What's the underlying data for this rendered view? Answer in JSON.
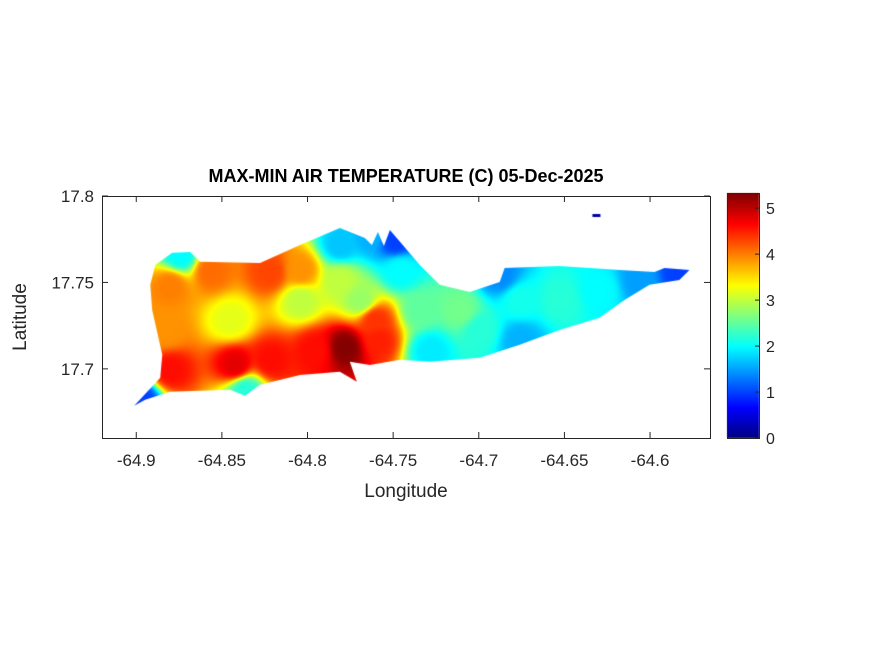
{
  "chart_data": {
    "type": "heatmap",
    "title": "MAX-MIN AIR TEMPERATURE (C) 05-Dec-2025",
    "xlabel": "Longitude",
    "ylabel": "Latitude",
    "xlim": [
      -64.92,
      -64.565
    ],
    "ylim": [
      17.66,
      17.8
    ],
    "xticks": [
      -64.9,
      -64.85,
      -64.8,
      -64.75,
      -64.7,
      -64.65,
      -64.6
    ],
    "xtick_labels": [
      "-64.9",
      "-64.85",
      "-64.8",
      "-64.75",
      "-64.7",
      "-64.65",
      "-64.6"
    ],
    "yticks": [
      17.7,
      17.75,
      17.8
    ],
    "ytick_labels": [
      "17.7",
      "17.75",
      "17.8"
    ],
    "colormap": "jet",
    "clim": [
      0,
      5.33
    ],
    "colorbar_ticks": [
      0,
      1,
      2,
      3,
      4,
      5
    ],
    "colorbar_tick_labels": [
      "0",
      "1",
      "2",
      "3",
      "4",
      "5"
    ],
    "grid": false,
    "land_outline": [
      [
        -64.9012,
        17.6786
      ],
      [
        -64.886,
        17.6948
      ],
      [
        -64.8848,
        17.7081
      ],
      [
        -64.8907,
        17.7341
      ],
      [
        -64.8918,
        17.7486
      ],
      [
        -64.8889,
        17.7601
      ],
      [
        -64.879,
        17.7671
      ],
      [
        -64.8685,
        17.7676
      ],
      [
        -64.8627,
        17.7619
      ],
      [
        -64.8277,
        17.7613
      ],
      [
        -64.8044,
        17.7717
      ],
      [
        -64.7811,
        17.7815
      ],
      [
        -64.7665,
        17.7757
      ],
      [
        -64.7624,
        17.7717
      ],
      [
        -64.7589,
        17.7792
      ],
      [
        -64.7554,
        17.7711
      ],
      [
        -64.7519,
        17.7803
      ],
      [
        -64.7344,
        17.7601
      ],
      [
        -64.7228,
        17.7486
      ],
      [
        -64.7053,
        17.7445
      ],
      [
        -64.6878,
        17.7503
      ],
      [
        -64.6849,
        17.7584
      ],
      [
        -64.6528,
        17.7595
      ],
      [
        -64.6178,
        17.7572
      ],
      [
        -64.5974,
        17.7561
      ],
      [
        -64.5916,
        17.7584
      ],
      [
        -64.577,
        17.7572
      ],
      [
        -64.5829,
        17.7514
      ],
      [
        -64.6003,
        17.7486
      ],
      [
        -64.6149,
        17.7399
      ],
      [
        -64.6295,
        17.7295
      ],
      [
        -64.6528,
        17.7225
      ],
      [
        -64.6761,
        17.7139
      ],
      [
        -64.6994,
        17.7064
      ],
      [
        -64.7286,
        17.7041
      ],
      [
        -64.746,
        17.7052
      ],
      [
        -64.7636,
        17.7023
      ],
      [
        -64.7753,
        17.7041
      ],
      [
        -64.7712,
        17.6925
      ],
      [
        -64.7811,
        17.6983
      ],
      [
        -64.8044,
        17.6965
      ],
      [
        -64.8277,
        17.6908
      ],
      [
        -64.8365,
        17.6844
      ],
      [
        -64.8452,
        17.6879
      ],
      [
        -64.8802,
        17.6867
      ],
      [
        -64.8948,
        17.6821
      ]
    ],
    "islet": {
      "lon": -64.6313,
      "lat": 17.789,
      "value": 0.2
    },
    "points": [
      [
        -64.8802,
        17.6994,
        4.6
      ],
      [
        -64.8423,
        17.7023,
        4.8
      ],
      [
        -64.8219,
        17.7052,
        4.6
      ],
      [
        -64.7956,
        17.711,
        4.6
      ],
      [
        -64.7782,
        17.7127,
        5.3
      ],
      [
        -64.7589,
        17.7168,
        4.5
      ],
      [
        -64.7607,
        17.7283,
        4.4
      ],
      [
        -64.8569,
        17.7572,
        4.1
      ],
      [
        -64.8219,
        17.7561,
        4.3
      ],
      [
        -64.8044,
        17.7572,
        3.9
      ],
      [
        -64.8802,
        17.7486,
        4.0
      ],
      [
        -64.8831,
        17.7225,
        3.9
      ],
      [
        -64.8452,
        17.7283,
        3.2
      ],
      [
        -64.8044,
        17.7399,
        3.0
      ],
      [
        -64.7811,
        17.7514,
        3.0
      ],
      [
        -64.7694,
        17.7399,
        2.8
      ],
      [
        -64.7461,
        17.7572,
        2.0
      ],
      [
        -64.7811,
        17.7717,
        1.7
      ],
      [
        -64.7344,
        17.7341,
        2.5
      ],
      [
        -64.7111,
        17.7341,
        2.6
      ],
      [
        -64.6994,
        17.7225,
        2.2
      ],
      [
        -64.6761,
        17.7399,
        2.1
      ],
      [
        -64.6528,
        17.7399,
        2.2
      ],
      [
        -64.6295,
        17.7457,
        2.0
      ],
      [
        -64.6062,
        17.7514,
        1.5
      ],
      [
        -64.5829,
        17.7561,
        1.0
      ],
      [
        -64.7286,
        17.711,
        1.9
      ],
      [
        -64.8365,
        17.6879,
        2.2
      ],
      [
        -64.8977,
        17.6821,
        1.0
      ],
      [
        -64.7636,
        17.7775,
        1.6
      ],
      [
        -64.749,
        17.7746,
        1.0
      ],
      [
        -64.8743,
        17.7659,
        2.0
      ],
      [
        -64.6761,
        17.7168,
        1.6
      ],
      [
        -64.6878,
        17.7543,
        1.4
      ]
    ]
  }
}
